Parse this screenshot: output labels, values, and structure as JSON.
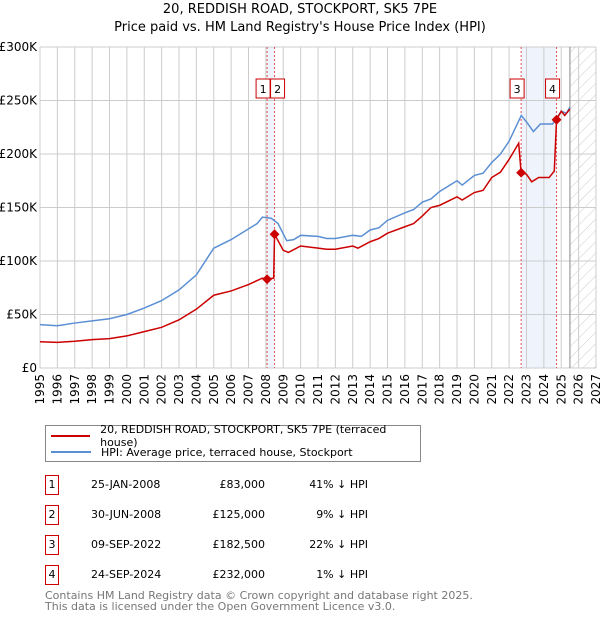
{
  "chart_data": {
    "type": "line",
    "title": "20, REDDISH ROAD, STOCKPORT, SK5 7PE",
    "subtitle": "Price paid vs. HM Land Registry's House Price Index (HPI)",
    "xlim": [
      1995,
      2027
    ],
    "ylim": [
      0,
      300000
    ],
    "x_ticks": [
      "1995",
      "1996",
      "1997",
      "1998",
      "1999",
      "2000",
      "2001",
      "2002",
      "2003",
      "2004",
      "2005",
      "2006",
      "2007",
      "2008",
      "2009",
      "2010",
      "2011",
      "2012",
      "2013",
      "2014",
      "2015",
      "2016",
      "2017",
      "2018",
      "2019",
      "2020",
      "2021",
      "2022",
      "2023",
      "2024",
      "2025",
      "2026",
      "2027"
    ],
    "y_ticks": [
      {
        "v": 0,
        "l": "£0"
      },
      {
        "v": 50000,
        "l": "£50K"
      },
      {
        "v": 100000,
        "l": "£100K"
      },
      {
        "v": 150000,
        "l": "£150K"
      },
      {
        "v": 200000,
        "l": "£200K"
      },
      {
        "v": 250000,
        "l": "£250K"
      },
      {
        "v": 300000,
        "l": "£300K"
      }
    ],
    "grid": true,
    "forecast_from": 2025.5,
    "series": [
      {
        "name": "20, REDDISH ROAD, STOCKPORT, SK5 7PE (terraced house)",
        "color": "#cc0000",
        "x": [
          1995,
          1996,
          1997,
          1998,
          1999,
          2000,
          2001,
          2002,
          2003,
          2004,
          2005,
          2006,
          2007,
          2007.8,
          2008.07,
          2008.45,
          2008.5,
          2009,
          2009.3,
          2010,
          2011,
          2011.5,
          2012,
          2013,
          2013.3,
          2014,
          2014.5,
          2015,
          2016,
          2016.5,
          2017,
          2017.5,
          2018,
          2019,
          2019.3,
          2020,
          2020.5,
          2021,
          2021.5,
          2022,
          2022.55,
          2022.69,
          2023,
          2023.3,
          2023.7,
          2024.3,
          2024.6,
          2024.73,
          2025,
          2025.2,
          2025.5
        ],
        "y": [
          24500,
          24000,
          25000,
          26500,
          27500,
          30000,
          34000,
          38000,
          45000,
          55000,
          68000,
          72000,
          78000,
          84000,
          83000,
          84000,
          125000,
          110000,
          108000,
          114000,
          112000,
          111000,
          111000,
          114000,
          112000,
          118000,
          121000,
          126000,
          132000,
          135000,
          142000,
          150000,
          152000,
          160000,
          157000,
          164000,
          166000,
          178000,
          183000,
          195000,
          210000,
          182500,
          181000,
          174000,
          178000,
          178000,
          184000,
          232000,
          240000,
          236000,
          242000
        ]
      },
      {
        "name": "HPI: Average price, terraced house, Stockport",
        "color": "#5b8fd4",
        "x": [
          1995,
          1996,
          1997,
          1998,
          1999,
          2000,
          2001,
          2002,
          2003,
          2004,
          2005,
          2006,
          2007,
          2007.5,
          2007.8,
          2008.3,
          2008.7,
          2009.2,
          2009.6,
          2010,
          2011,
          2011.5,
          2012,
          2013,
          2013.5,
          2014,
          2014.5,
          2015,
          2016,
          2016.5,
          2017,
          2017.5,
          2018,
          2019,
          2019.3,
          2020,
          2020.5,
          2021,
          2021.5,
          2022,
          2022.7,
          2023,
          2023.4,
          2023.8,
          2024.5,
          2025,
          2025.3,
          2025.5
        ],
        "y": [
          40500,
          39500,
          42000,
          44000,
          46000,
          50000,
          56000,
          63000,
          73000,
          87000,
          112000,
          120000,
          130000,
          135000,
          141000,
          140000,
          135000,
          119000,
          120000,
          124000,
          123000,
          121000,
          121000,
          124000,
          123000,
          129000,
          131000,
          138000,
          145000,
          148000,
          155000,
          158000,
          165000,
          175000,
          171000,
          180000,
          182000,
          192000,
          200000,
          212000,
          236000,
          230000,
          221000,
          228000,
          228000,
          240000,
          238000,
          244000
        ]
      }
    ],
    "sales": [
      {
        "id": "1",
        "x": 2008.07,
        "y": 83000,
        "date": "25-JAN-2008",
        "price": "£83,000",
        "hpi": "41% ↓ HPI"
      },
      {
        "id": "2",
        "x": 2008.5,
        "y": 125000,
        "date": "30-JUN-2008",
        "price": "£125,000",
        "hpi": "9% ↓ HPI"
      },
      {
        "id": "3",
        "x": 2022.69,
        "y": 182500,
        "date": "09-SEP-2022",
        "price": "£182,500",
        "hpi": "22% ↓ HPI"
      },
      {
        "id": "4",
        "x": 2024.73,
        "y": 232000,
        "date": "24-SEP-2024",
        "price": "£232,000",
        "hpi": "1% ↓ HPI"
      }
    ]
  },
  "footer": {
    "line1": "Contains HM Land Registry data © Crown copyright and database right 2025.",
    "line2": "This data is licensed under the Open Government Licence v3.0."
  }
}
